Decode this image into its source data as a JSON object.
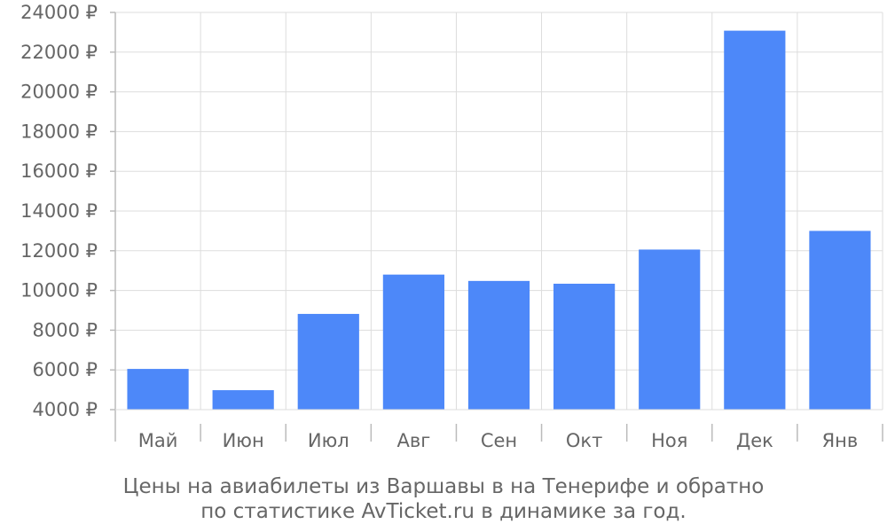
{
  "chart_data": {
    "type": "bar",
    "categories": [
      "Май",
      "Июн",
      "Июл",
      "Авг",
      "Сен",
      "Окт",
      "Ноя",
      "Дек",
      "Янв"
    ],
    "series": [
      {
        "values": [
          6050,
          4980,
          8820,
          10800,
          10480,
          10340,
          12060,
          23080,
          13000
        ],
        "color": "#4d88f9"
      }
    ],
    "ylim": [
      4000,
      24000
    ],
    "yticks": [
      4000,
      6000,
      8000,
      10000,
      12000,
      14000,
      16000,
      18000,
      20000,
      22000,
      24000
    ],
    "y_unit_suffix": " ₽",
    "grid": true,
    "title": "",
    "xlabel": "",
    "ylabel": ""
  },
  "caption": {
    "line1": "Цены на авиабилеты из Варшавы в на Тенерифе и обратно",
    "line2": "по статистике AvTicket.ru в динамике за год."
  }
}
